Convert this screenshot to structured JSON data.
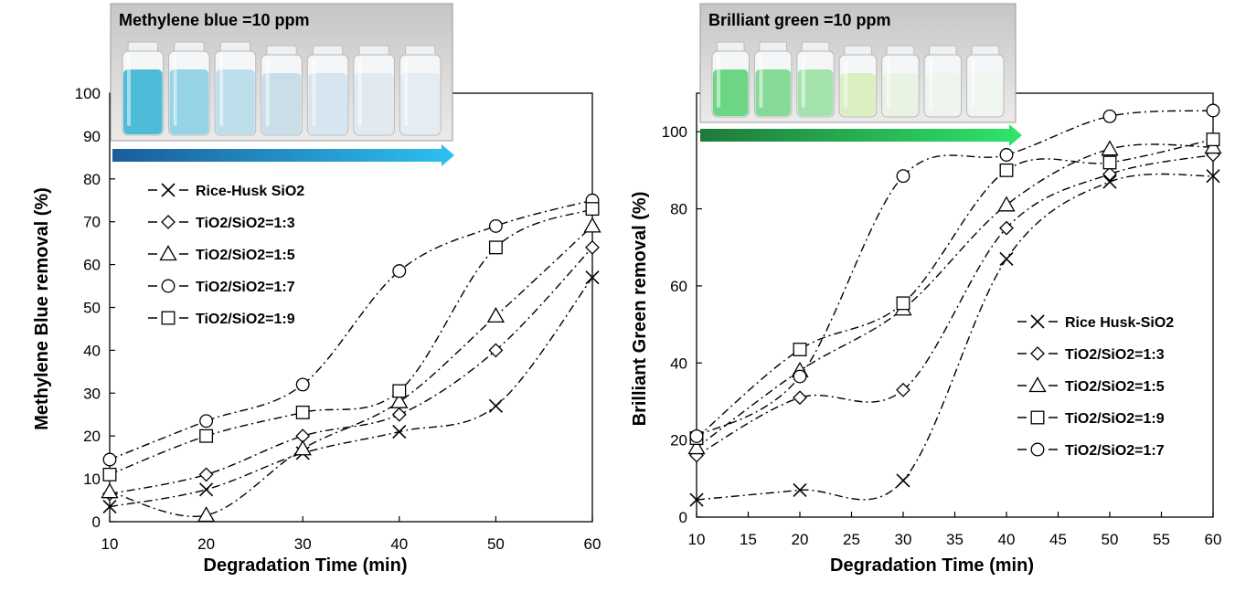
{
  "chart_data": [
    {
      "type": "line",
      "title": "",
      "xlabel": "Degradation Time (min)",
      "ylabel": "Methylene Blue  removal (%)",
      "xlim": [
        10,
        60
      ],
      "ylim": [
        0,
        100
      ],
      "xticks": [
        10,
        20,
        30,
        40,
        50,
        60
      ],
      "yticks": [
        0,
        10,
        20,
        30,
        40,
        50,
        60,
        70,
        80,
        90,
        100
      ],
      "grid": false,
      "legend_position": "upper-left",
      "photo_caption": "Methylene blue =10 ppm",
      "photo_liquid_colors": [
        "#3fb6d6",
        "#8ccfe3",
        "#b7dcea",
        "#c5dbe8",
        "#d3e3ee",
        "#dfe8f0",
        "#e3eaf1"
      ],
      "arrow_colors": [
        "#1a5d99",
        "#2ec0f0"
      ],
      "x": [
        10,
        20,
        30,
        40,
        50,
        60
      ],
      "series": [
        {
          "name": "Rice-Husk SiO2",
          "marker": "x",
          "values": [
            3.5,
            7.5,
            16,
            21,
            27,
            57
          ]
        },
        {
          "name": "TiO2/SiO2=1:3",
          "marker": "diamond",
          "values": [
            6.5,
            11,
            20,
            25,
            40,
            64
          ]
        },
        {
          "name": "TiO2/SiO2=1:5",
          "marker": "triangle",
          "values": [
            7,
            1.5,
            17,
            28,
            48,
            69
          ]
        },
        {
          "name": "TiO2/SiO2=1:7",
          "marker": "circle",
          "values": [
            14.5,
            23.5,
            32,
            58.5,
            69,
            75
          ]
        },
        {
          "name": "TiO2/SiO2=1:9",
          "marker": "square",
          "values": [
            11,
            20,
            25.5,
            30.5,
            64,
            73
          ]
        }
      ]
    },
    {
      "type": "line",
      "title": "",
      "xlabel": "Degradation Time (min)",
      "ylabel": "Brilliant  Green  removal (%)",
      "xlim": [
        10,
        60
      ],
      "ylim": [
        0,
        110
      ],
      "xticks": [
        10,
        15,
        20,
        25,
        30,
        35,
        40,
        45,
        50,
        55,
        60
      ],
      "yticks": [
        0,
        20,
        40,
        60,
        80,
        100
      ],
      "grid": false,
      "legend_position": "lower-right",
      "photo_caption": "Brilliant green =10 ppm",
      "photo_liquid_colors": [
        "#5fd27a",
        "#7cd78e",
        "#9bdfa3",
        "#d8eebc",
        "#e6f2e2",
        "#ecf4ec",
        "#eef5ee"
      ],
      "arrow_colors": [
        "#1f7a3a",
        "#2ee66b"
      ],
      "x": [
        10,
        20,
        30,
        40,
        50,
        60
      ],
      "series": [
        {
          "name": "Rice Husk-SiO2",
          "marker": "x",
          "values": [
            4.5,
            7,
            9.5,
            67,
            87,
            88.5
          ]
        },
        {
          "name": "TiO2/SiO2=1:3",
          "marker": "diamond",
          "values": [
            16,
            31,
            33,
            75,
            89,
            94
          ]
        },
        {
          "name": "TiO2/SiO2=1:5",
          "marker": "triangle",
          "values": [
            18,
            38,
            54,
            81,
            95.5,
            96
          ]
        },
        {
          "name": "TiO2/SiO2=1:9",
          "marker": "square",
          "values": [
            20.5,
            43.5,
            55.5,
            90,
            92,
            98
          ]
        },
        {
          "name": "TiO2/SiO2=1:7",
          "marker": "circle",
          "values": [
            21,
            36.5,
            88.5,
            94,
            104,
            105.5
          ]
        }
      ]
    }
  ]
}
